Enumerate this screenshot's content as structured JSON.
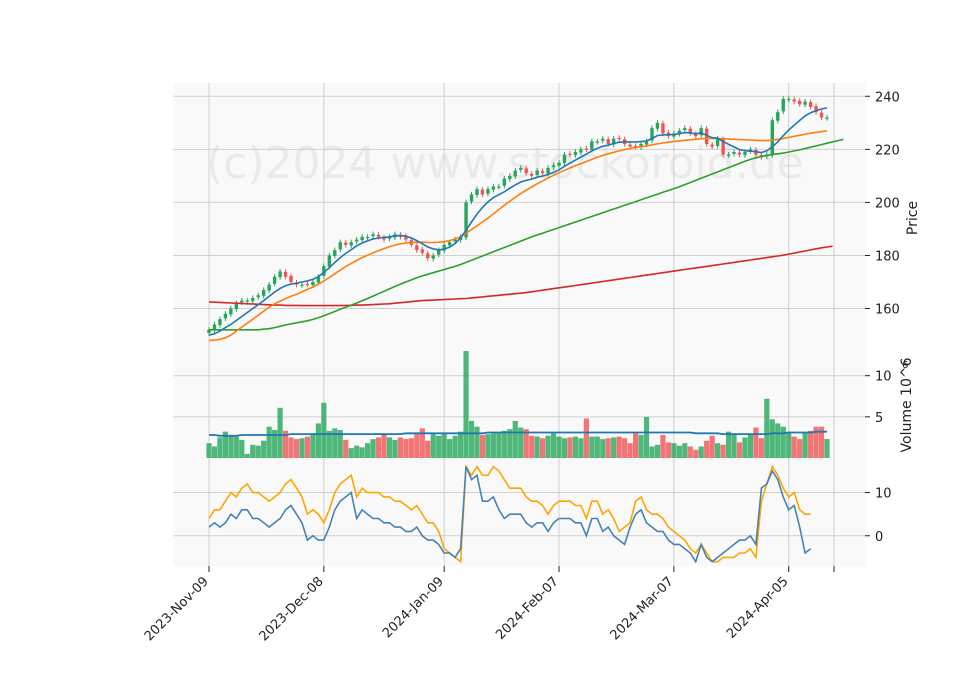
{
  "chart_data": {
    "type": "candlestick",
    "watermark": "(c)2024 www.stockoroid.de",
    "x_tick_labels": [
      "2023-Nov-09",
      "2023-Dec-08",
      "2024-Jan-09",
      "2024-Feb-07",
      "2024-Mar-07",
      "2024-Apr-05"
    ],
    "colors": {
      "up": "#26a65b",
      "down": "#f05454",
      "ma_fast": "#1f77b4",
      "ma_mid": "#ff7f0e",
      "ma_slow": "#2ca02c",
      "ma_long": "#d62728",
      "osc_a": "#4682b4",
      "osc_b": "#ffa500",
      "grid": "#d0d0d0",
      "panel_bg": "#f9f9f9"
    },
    "price_panel": {
      "ylabel": "Price",
      "ylim": [
        144,
        245
      ],
      "yticks": [
        160,
        180,
        200,
        220,
        240
      ],
      "close": [
        152,
        154,
        156,
        158,
        160,
        162,
        163,
        163,
        164,
        165,
        167,
        169,
        172,
        174,
        172,
        170,
        169,
        169,
        169,
        170,
        172,
        176,
        180,
        182,
        185,
        184,
        185,
        186,
        187,
        187,
        188,
        187,
        186,
        187,
        188,
        187,
        186,
        184,
        182,
        181,
        179,
        180,
        182,
        184,
        185,
        186,
        187,
        200,
        203,
        205,
        203,
        205,
        206,
        206,
        209,
        210,
        212,
        213,
        211,
        210,
        212,
        211,
        213,
        214,
        215,
        218,
        218,
        219,
        220,
        220,
        223,
        223,
        224,
        222,
        224,
        224,
        222,
        221,
        221,
        222,
        223,
        228,
        230,
        226,
        225,
        226,
        227,
        228,
        226,
        225,
        228,
        222,
        221,
        224,
        218,
        218,
        219,
        218,
        219,
        220,
        218,
        217,
        218,
        231,
        234,
        239,
        239,
        238,
        237,
        238,
        236,
        234,
        232,
        232
      ],
      "ma_fast": [
        150,
        150.5,
        151.5,
        152.8,
        154,
        155.5,
        157,
        158.5,
        160,
        161.5,
        163,
        164.6,
        166.2,
        167.6,
        168.6,
        169.2,
        169.6,
        170,
        170.4,
        171,
        172,
        173.6,
        175.4,
        177.3,
        179.2,
        180.8,
        182.2,
        183.6,
        184.7,
        185.5,
        186.2,
        186.6,
        186.8,
        187,
        187.4,
        187.5,
        187.3,
        186.6,
        185.6,
        184.4,
        183.2,
        182.5,
        182.1,
        182.4,
        183.1,
        184.5,
        186.6,
        189.5,
        192.6,
        195.6,
        198.1,
        200.2,
        201.8,
        202.9,
        204,
        205.3,
        206.6,
        207.7,
        208.3,
        208.8,
        209.5,
        209.9,
        210.5,
        211.3,
        212.3,
        213.6,
        214.8,
        215.9,
        217.1,
        218.2,
        219.4,
        220.4,
        221.2,
        221.6,
        222.2,
        222.7,
        222.8,
        222.8,
        222.8,
        222.9,
        223.1,
        224.1,
        225.2,
        225.4,
        225.5,
        225.6,
        225.9,
        226.3,
        226.2,
        225.9,
        226.2,
        225.3,
        224.4,
        224.2,
        223,
        221.9,
        220.9,
        219.9,
        219.5,
        219.3,
        219.1,
        218.8,
        219.4,
        221,
        222.8,
        225.1,
        227.3,
        229.1,
        230.9,
        232.6,
        233.8,
        234.6,
        235.2,
        235.6
      ],
      "ma_mid": [
        148,
        148.1,
        148.4,
        149,
        150,
        151.5,
        153,
        154.5,
        156,
        157.5,
        159,
        160.5,
        161.8,
        162.8,
        163.7,
        164.6,
        165.4,
        166.3,
        167.2,
        168.1,
        169.2,
        170.4,
        171.7,
        173.1,
        174.5,
        175.8,
        177,
        178.1,
        179.2,
        180.1,
        181,
        181.8,
        182.6,
        183.3,
        183.9,
        184.4,
        184.7,
        184.9,
        185,
        185,
        184.9,
        184.9,
        185,
        185.2,
        185.6,
        186.2,
        187.1,
        188.4,
        189.8,
        191.2,
        192.6,
        194.1,
        195.7,
        197.3,
        198.9,
        200.4,
        201.9,
        203.3,
        204.6,
        205.8,
        207,
        208.1,
        209.2,
        210.2,
        211.2,
        212.1,
        213,
        213.8,
        214.6,
        215.4,
        216.2,
        217,
        217.7,
        218.3,
        218.9,
        219.4,
        219.9,
        220.3,
        220.7,
        221,
        221.3,
        221.7,
        222.1,
        222.4,
        222.7,
        223,
        223.2,
        223.4,
        223.6,
        223.8,
        224,
        224.1,
        224.1,
        224.1,
        224,
        223.9,
        223.8,
        223.7,
        223.6,
        223.5,
        223.4,
        223.3,
        223.3,
        223.5,
        223.8,
        224.1,
        224.5,
        224.9,
        225.3,
        225.7,
        226.1,
        226.4,
        226.7,
        227
      ],
      "ma_slow": [
        152,
        152,
        152,
        152,
        152,
        152,
        152,
        152,
        152,
        152,
        152.2,
        152.4,
        152.8,
        153.3,
        153.8,
        154.2,
        154.6,
        155,
        155.4,
        155.9,
        156.5,
        157.3,
        158.1,
        158.9,
        159.7,
        160.5,
        161.3,
        162.1,
        162.9,
        163.8,
        164.7,
        165.6,
        166.5,
        167.4,
        168.3,
        169.2,
        170,
        170.8,
        171.6,
        172.3,
        172.9,
        173.5,
        174.1,
        174.7,
        175.3,
        175.9,
        176.6,
        177.4,
        178.2,
        179,
        179.8,
        180.6,
        181.4,
        182.2,
        183,
        183.8,
        184.6,
        185.4,
        186.2,
        187,
        187.7,
        188.4,
        189.1,
        189.8,
        190.5,
        191.2,
        191.9,
        192.6,
        193.3,
        194,
        194.7,
        195.4,
        196.1,
        196.8,
        197.5,
        198.2,
        198.9,
        199.6,
        200.3,
        201,
        201.7,
        202.4,
        203.1,
        203.8,
        204.5,
        205.2,
        205.9,
        206.7,
        207.5,
        208.3,
        209.1,
        209.9,
        210.7,
        211.5,
        212.3,
        213.1,
        213.9,
        214.7,
        215.5,
        216.2,
        216.8,
        217.3,
        217.7,
        218,
        218.3,
        218.6,
        219,
        219.4,
        219.8,
        220.3,
        220.8,
        221.3,
        221.8,
        222.3,
        222.8,
        223.3,
        223.8
      ],
      "ma_long": [
        162.5,
        162.4,
        162.3,
        162.2,
        162.1,
        162,
        161.9,
        161.8,
        161.7,
        161.6,
        161.5,
        161.4,
        161.3,
        161.3,
        161.2,
        161.2,
        161.2,
        161.1,
        161.1,
        161.1,
        161.1,
        161.1,
        161.1,
        161.1,
        161.1,
        161.2,
        161.2,
        161.3,
        161.3,
        161.4,
        161.5,
        161.6,
        161.7,
        161.8,
        162,
        162.2,
        162.4,
        162.6,
        162.8,
        163,
        163.1,
        163.2,
        163.3,
        163.4,
        163.5,
        163.6,
        163.7,
        163.8,
        164,
        164.2,
        164.4,
        164.6,
        164.8,
        165,
        165.2,
        165.4,
        165.6,
        165.8,
        166,
        166.3,
        166.6,
        166.9,
        167.2,
        167.5,
        167.8,
        168.1,
        168.4,
        168.7,
        169,
        169.3,
        169.6,
        169.9,
        170.2,
        170.5,
        170.8,
        171.1,
        171.4,
        171.7,
        172,
        172.3,
        172.6,
        172.9,
        173.2,
        173.5,
        173.8,
        174.1,
        174.4,
        174.7,
        175,
        175.3,
        175.6,
        175.9,
        176.2,
        176.5,
        176.8,
        177.1,
        177.4,
        177.7,
        178,
        178.3,
        178.6,
        178.9,
        179.2,
        179.5,
        179.8,
        180.1,
        180.5,
        180.9,
        181.3,
        181.7,
        182.1,
        182.5,
        182.9,
        183.2,
        183.5
      ],
      "up_candle_color": "#26a65b",
      "down_candle_color": "#f05454"
    },
    "volume_panel": {
      "ylabel": "Volume  10^6",
      "ylim": [
        0,
        13
      ],
      "yticks": [
        5,
        10
      ],
      "values": [
        1.8,
        1.4,
        2.5,
        3.2,
        2.7,
        2.6,
        2.2,
        0.5,
        1.6,
        1.5,
        2.1,
        3.8,
        3.4,
        6.1,
        3.3,
        2.5,
        2.3,
        2.4,
        2.6,
        3,
        4.2,
        6.7,
        3.3,
        3.6,
        3.4,
        2.2,
        1.2,
        1.5,
        1.3,
        1.8,
        2.3,
        2.5,
        3,
        2.5,
        2.2,
        2.5,
        2.3,
        2.4,
        2.9,
        3.6,
        2.1,
        2.9,
        2.7,
        2.9,
        2.3,
        2.7,
        3.2,
        13,
        4.5,
        3.8,
        2.8,
        2.9,
        3,
        3,
        3.3,
        3.5,
        4.5,
        3.7,
        3.5,
        2.7,
        2.6,
        2.4,
        2.7,
        3,
        2.6,
        2.4,
        2.5,
        2.6,
        2.4,
        4.8,
        2.6,
        2.6,
        2.3,
        2.4,
        2.5,
        2.6,
        2.4,
        1.8,
        3,
        2.8,
        5,
        1.4,
        1.6,
        2.8,
        1.9,
        1.8,
        1.5,
        1.8,
        1.4,
        1,
        1.4,
        2.1,
        2.7,
        1.8,
        1.6,
        3.2,
        3,
        1.9,
        2.5,
        2.8,
        3.7,
        2.4,
        7.2,
        4.7,
        4.2,
        3.8,
        3.2,
        2.6,
        2.3,
        3.1,
        3.3,
        3.8,
        3.8,
        2.3
      ],
      "ma": [
        2.8,
        2.8,
        2.7,
        2.7,
        2.7,
        2.7,
        2.8,
        2.8,
        2.8,
        2.8,
        2.8,
        2.8,
        2.8,
        2.8,
        2.8,
        2.9,
        2.9,
        2.9,
        2.9,
        2.9,
        2.9,
        2.9,
        2.9,
        2.9,
        2.9,
        2.9,
        2.9,
        2.9,
        2.9,
        2.9,
        2.9,
        2.9,
        2.9,
        2.9,
        2.9,
        2.9,
        3,
        3,
        3,
        3,
        3,
        3,
        3,
        3,
        3,
        3,
        3,
        3,
        3,
        3,
        3,
        3.1,
        3.1,
        3.1,
        3.1,
        3.1,
        3.1,
        3.1,
        3.1,
        3.1,
        3.1,
        3.1,
        3.1,
        3.1,
        3.1,
        3.1,
        3.1,
        3.1,
        3.1,
        3.1,
        3.1,
        3.1,
        3.1,
        3.1,
        3.1,
        3.1,
        3.1,
        3.1,
        3.1,
        3.1,
        3.1,
        3.1,
        3.1,
        3.1,
        3.1,
        3.1,
        3.1,
        3.1,
        3.1,
        3,
        3,
        3,
        3,
        3,
        2.9,
        2.9,
        2.9,
        2.9,
        2.9,
        2.9,
        2.9,
        2.9,
        2.9,
        3,
        3,
        3,
        3.1,
        3.1,
        3.1,
        3.1,
        3.1,
        3.2,
        3.2,
        3.2
      ],
      "up_indices_note": "bar color follows candle direction"
    },
    "oscillator_panel": {
      "ylim": [
        -7,
        18
      ],
      "yticks": [
        0,
        10
      ],
      "series_a": [
        2,
        3,
        2,
        3,
        5,
        4,
        6,
        6,
        4,
        4,
        3,
        2,
        3,
        4,
        6,
        7,
        5,
        3,
        -1,
        0,
        -1,
        -1,
        2,
        6,
        8,
        9,
        10,
        4,
        6,
        5,
        4,
        4,
        3,
        3,
        2,
        2,
        1,
        1,
        2,
        0,
        -1,
        -1,
        -2,
        -4,
        -4,
        -5,
        -3,
        16,
        13,
        14,
        8,
        8,
        9,
        6,
        4,
        5,
        5,
        5,
        3,
        2,
        3,
        3,
        1,
        3,
        4,
        4,
        4,
        3,
        3,
        0,
        4,
        4,
        1,
        2,
        0,
        -1,
        -2,
        2,
        5,
        6,
        3,
        2,
        1,
        1,
        -1,
        -2,
        -2,
        -3,
        -4,
        -6,
        -2,
        -5,
        -6,
        -5,
        -4,
        -3,
        -2,
        -1,
        -1,
        0,
        -2,
        11,
        12,
        15,
        13,
        9,
        6,
        7,
        2,
        -4,
        -3
      ],
      "series_b": [
        4,
        6,
        6,
        8,
        10,
        9,
        11,
        12,
        10,
        10,
        9,
        8,
        9,
        10,
        12,
        13,
        11,
        9,
        5,
        6,
        5,
        3,
        6,
        10,
        12,
        13,
        14,
        9,
        11,
        10,
        10,
        10,
        9,
        9,
        8,
        8,
        7,
        6,
        7,
        5,
        3,
        3,
        1,
        -3,
        -4,
        -5,
        -6,
        16,
        14,
        16,
        14,
        14,
        16,
        15,
        13,
        11,
        11,
        11,
        9,
        8,
        8,
        7,
        5,
        7,
        8,
        8,
        8,
        7,
        7,
        4,
        8,
        8,
        5,
        6,
        4,
        1,
        2,
        3,
        8,
        9,
        6,
        5,
        5,
        4,
        2,
        1,
        0,
        -1,
        -3,
        -4,
        -2,
        -4,
        -6,
        -6,
        -5,
        -5,
        -5,
        -4,
        -4,
        -3,
        -5,
        8,
        12,
        16,
        14,
        11,
        9,
        10,
        6,
        5,
        5
      ]
    }
  }
}
